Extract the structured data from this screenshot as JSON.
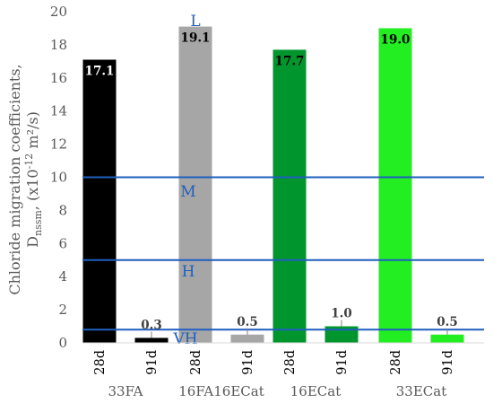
{
  "chart_data": {
    "type": "bar",
    "ylabel_line1": "Chloride migration coefficients,",
    "ylabel_line2_main": "D",
    "ylabel_line2_sub": "nssm",
    "ylabel_line2_rest": ", (x10",
    "ylabel_line2_exp": "-12",
    "ylabel_line2_unit": " m²/s)",
    "ylim": [
      0,
      20
    ],
    "yticks": [
      "0",
      "2",
      "4",
      "6",
      "8",
      "10",
      "12",
      "14",
      "16",
      "18",
      "20"
    ],
    "groups": [
      "33FA",
      "16FA16ECat",
      "16ECat",
      "33ECat"
    ],
    "ages": [
      "28d",
      "91d"
    ],
    "series": [
      {
        "group": "33FA",
        "values": [
          17.1,
          0.3
        ],
        "labels": [
          "17.1",
          "0.3"
        ],
        "color": "#000000"
      },
      {
        "group": "16FA16ECat",
        "values": [
          19.1,
          0.5
        ],
        "labels": [
          "19.1",
          "0.5"
        ],
        "color": "#a6a6a6"
      },
      {
        "group": "16ECat",
        "values": [
          17.7,
          1.0
        ],
        "labels": [
          "17.7",
          "1.0"
        ],
        "color": "#00962d"
      },
      {
        "group": "33ECat",
        "values": [
          19.0,
          0.5
        ],
        "labels": [
          "19.0",
          "0.5"
        ],
        "color": "#22ee22"
      }
    ],
    "thresholds": [
      {
        "label": "L",
        "value": 20
      },
      {
        "label": "M",
        "value": 10
      },
      {
        "label": "H",
        "value": 5
      },
      {
        "label": "VH",
        "value": 0.8
      }
    ],
    "threshold_color": "#1f5fbf",
    "grid": false
  }
}
